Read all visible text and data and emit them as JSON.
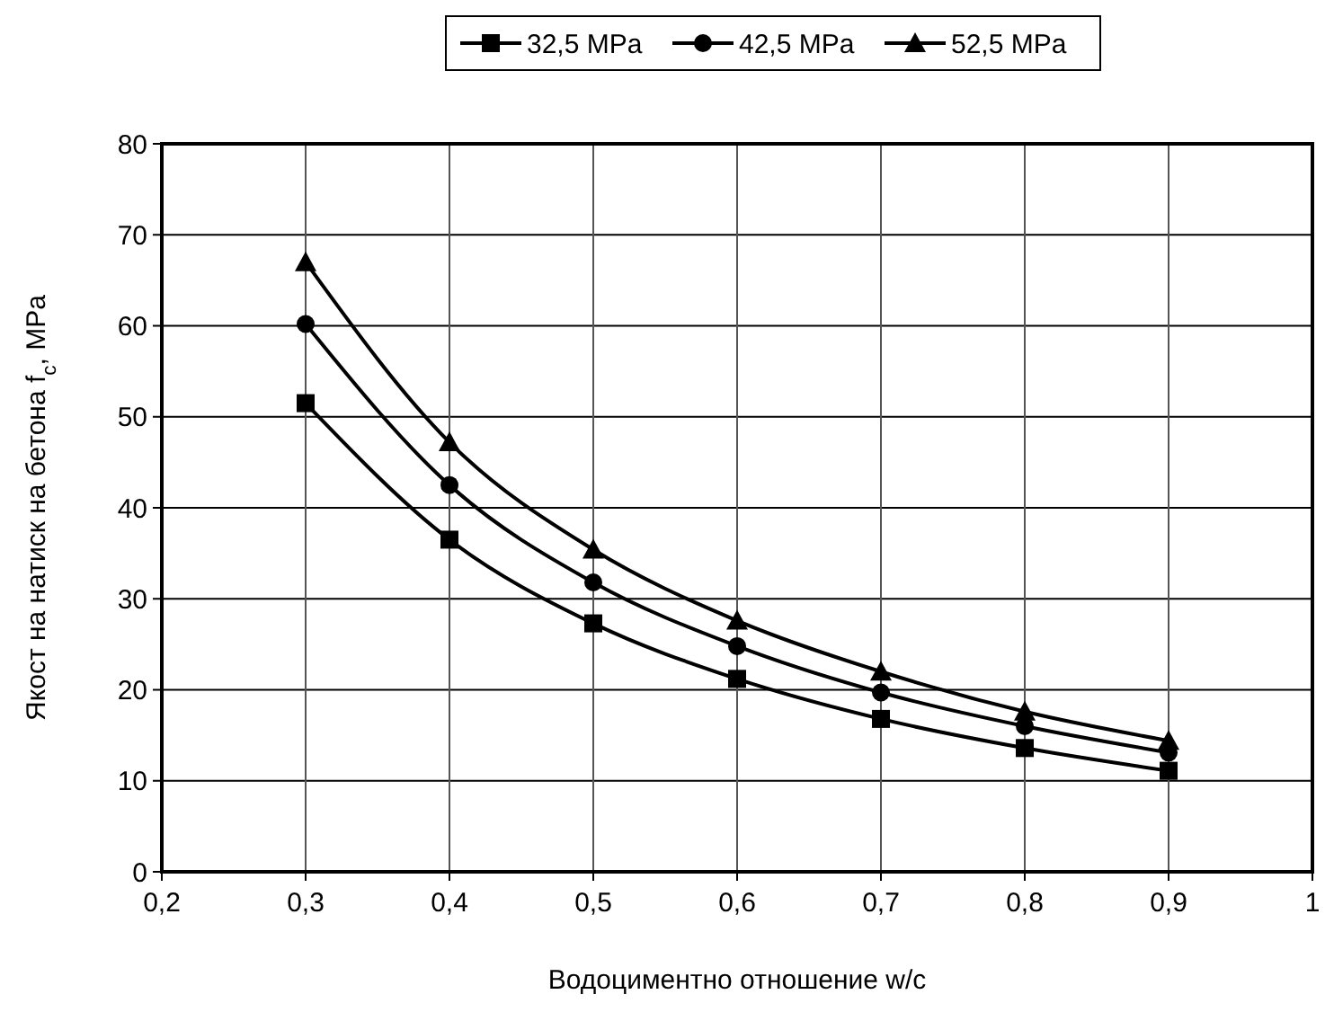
{
  "chart_data": {
    "type": "line",
    "xlabel": "Водоциментно отношение w/c",
    "ylabel": "Якост на натиск на бетона f$_{c}$, MPa",
    "x": [
      0.3,
      0.4,
      0.5,
      0.6,
      0.7,
      0.8,
      0.9
    ],
    "xlim": [
      0.2,
      1
    ],
    "xticks": [
      {
        "value": 0.2,
        "label": "0,2"
      },
      {
        "value": 0.3,
        "label": "0,3"
      },
      {
        "value": 0.4,
        "label": "0,4"
      },
      {
        "value": 0.5,
        "label": "0,5"
      },
      {
        "value": 0.6,
        "label": "0,6"
      },
      {
        "value": 0.7,
        "label": "0,7"
      },
      {
        "value": 0.8,
        "label": "0,8"
      },
      {
        "value": 0.9,
        "label": "0,9"
      },
      1
    ],
    "ylim": [
      0,
      80
    ],
    "yticks": [
      0,
      10,
      20,
      30,
      40,
      50,
      60,
      70,
      80
    ],
    "grid": true,
    "legend": "top",
    "line_style": "solid",
    "series": [
      {
        "name": "32,5 MPa",
        "color": "#000000",
        "marker": "square",
        "values": [
          51.5,
          36.5,
          27.3,
          21.2,
          16.8,
          13.6,
          11.1
        ]
      },
      {
        "name": "42,5 MPa",
        "color": "#000000",
        "marker": "circle",
        "values": [
          60.2,
          42.5,
          31.8,
          24.8,
          19.7,
          16.0,
          13.1
        ]
      },
      {
        "name": "52,5 MPa",
        "color": "#000000",
        "marker": "triangle",
        "values": [
          67.0,
          47.2,
          35.4,
          27.6,
          22.0,
          17.6,
          14.4
        ]
      }
    ]
  }
}
